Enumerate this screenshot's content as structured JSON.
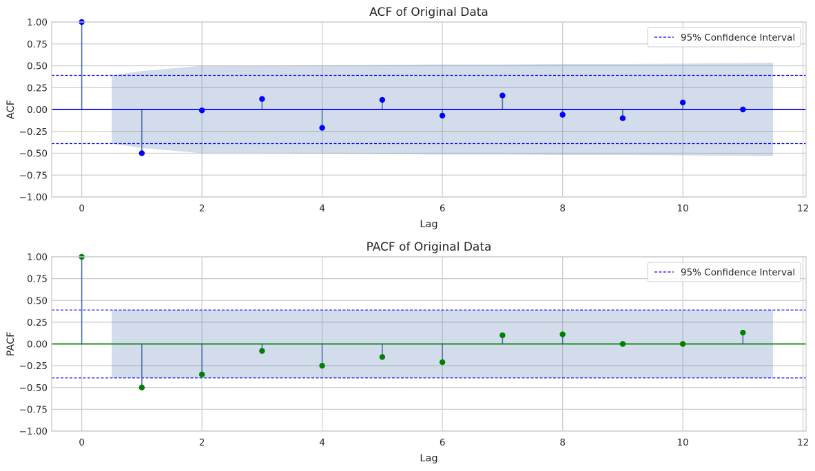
{
  "chart_data": [
    {
      "type": "stem",
      "title": "ACF of Original Data",
      "xlabel": "Lag",
      "ylabel": "ACF",
      "xlim": [
        -0.5,
        12.05
      ],
      "ylim": [
        -1.0,
        1.0
      ],
      "xticks": [
        0,
        2,
        4,
        6,
        8,
        10,
        12
      ],
      "yticks": [
        -1.0,
        -0.75,
        -0.5,
        -0.25,
        0.0,
        0.25,
        0.5,
        0.75,
        1.0
      ],
      "xtick_labels": [
        "0",
        "2",
        "4",
        "6",
        "8",
        "10",
        "12"
      ],
      "ytick_labels": [
        "−1.00",
        "−0.75",
        "−0.50",
        "−0.25",
        "0.00",
        "0.25",
        "0.50",
        "0.75",
        "1.00"
      ],
      "grid": true,
      "marker_color": "#0000ff",
      "stem_color": "#4c72b0",
      "baseline_color": "#0000ff",
      "x": [
        0,
        1,
        2,
        3,
        4,
        5,
        6,
        7,
        8,
        9,
        10,
        11
      ],
      "values": [
        1.0,
        -0.5,
        -0.01,
        0.12,
        -0.21,
        0.11,
        -0.07,
        0.16,
        -0.06,
        -0.1,
        0.08,
        0.0
      ],
      "confidence_band": {
        "color": "#4c72b0",
        "x": [
          0.5,
          1,
          2,
          3,
          4,
          5,
          6,
          7,
          8,
          9,
          10,
          11,
          11.5
        ],
        "upper": [
          0.39,
          0.44,
          0.5,
          0.5,
          0.505,
          0.51,
          0.515,
          0.515,
          0.52,
          0.52,
          0.525,
          0.53,
          0.535
        ],
        "lower": [
          -0.39,
          -0.44,
          -0.5,
          -0.5,
          -0.505,
          -0.51,
          -0.515,
          -0.515,
          -0.52,
          -0.52,
          -0.525,
          -0.53,
          -0.535
        ]
      },
      "confidence_lines": {
        "upper": 0.39,
        "lower": -0.39,
        "color": "#0000ff"
      },
      "legend": {
        "position": "top-right",
        "label": "95% Confidence Interval"
      }
    },
    {
      "type": "stem",
      "title": "PACF of Original Data",
      "xlabel": "Lag",
      "ylabel": "PACF",
      "xlim": [
        -0.5,
        12.05
      ],
      "ylim": [
        -1.0,
        1.0
      ],
      "xticks": [
        0,
        2,
        4,
        6,
        8,
        10,
        12
      ],
      "yticks": [
        -1.0,
        -0.75,
        -0.5,
        -0.25,
        0.0,
        0.25,
        0.5,
        0.75,
        1.0
      ],
      "xtick_labels": [
        "0",
        "2",
        "4",
        "6",
        "8",
        "10",
        "12"
      ],
      "ytick_labels": [
        "−1.00",
        "−0.75",
        "−0.50",
        "−0.25",
        "0.00",
        "0.25",
        "0.50",
        "0.75",
        "1.00"
      ],
      "grid": true,
      "marker_color": "#008000",
      "stem_color": "#4c72b0",
      "baseline_color": "#008000",
      "x": [
        0,
        1,
        2,
        3,
        4,
        5,
        6,
        7,
        8,
        9,
        10,
        11
      ],
      "values": [
        1.0,
        -0.5,
        -0.35,
        -0.08,
        -0.25,
        -0.15,
        -0.21,
        0.1,
        0.11,
        0.0,
        0.0,
        0.13
      ],
      "confidence_band": {
        "color": "#4c72b0",
        "x": [
          0.5,
          11.5
        ],
        "upper": [
          0.39,
          0.39
        ],
        "lower": [
          -0.39,
          -0.39
        ]
      },
      "confidence_lines": {
        "upper": 0.39,
        "lower": -0.39,
        "color": "#0000ff"
      },
      "legend": {
        "position": "top-right",
        "label": "95% Confidence Interval"
      }
    }
  ]
}
